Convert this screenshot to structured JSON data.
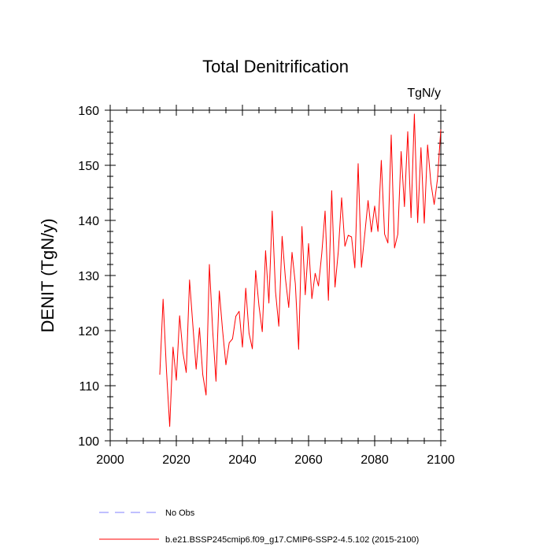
{
  "chart_data": {
    "type": "line",
    "title": "Total Denitrification",
    "units": "TgN/y",
    "xlabel": "",
    "ylabel": "DENIT  (TgN/y)",
    "xlim": [
      2000,
      2100
    ],
    "ylim": [
      100,
      160
    ],
    "x_ticks": [
      2000,
      2020,
      2040,
      2060,
      2080,
      2100
    ],
    "y_ticks": [
      100,
      110,
      120,
      130,
      140,
      150,
      160
    ],
    "series": [
      {
        "name": "b.e21.BSSP245cmip6.f09_g17.CMIP6-SSP2-4.5.102 (2015-2100)",
        "color": "#ff0000",
        "dash": "solid",
        "x": [
          2015,
          2016,
          2017,
          2018,
          2019,
          2020,
          2021,
          2022,
          2023,
          2024,
          2025,
          2026,
          2027,
          2028,
          2029,
          2030,
          2031,
          2032,
          2033,
          2034,
          2035,
          2036,
          2037,
          2038,
          2039,
          2040,
          2041,
          2042,
          2043,
          2044,
          2045,
          2046,
          2047,
          2048,
          2049,
          2050,
          2051,
          2052,
          2053,
          2054,
          2055,
          2056,
          2057,
          2058,
          2059,
          2060,
          2061,
          2062,
          2063,
          2064,
          2065,
          2066,
          2067,
          2068,
          2069,
          2070,
          2071,
          2072,
          2073,
          2074,
          2075,
          2076,
          2077,
          2078,
          2079,
          2080,
          2081,
          2082,
          2083,
          2084,
          2085,
          2086,
          2087,
          2088,
          2089,
          2090,
          2091,
          2092,
          2093,
          2094,
          2095,
          2096,
          2097,
          2098,
          2099,
          2100
        ],
        "values": [
          112,
          125.7,
          113,
          102.6,
          117,
          111,
          122.7,
          116,
          112.4,
          129.2,
          121,
          113,
          120.5,
          112,
          108.3,
          132,
          120,
          110.8,
          127.2,
          120,
          113.8,
          117.8,
          118.5,
          122.6,
          123.5,
          117,
          127.7,
          119.5,
          116.7,
          130.9,
          124.5,
          119.8,
          134.5,
          125,
          141.7,
          127.1,
          120.8,
          137.1,
          129.5,
          124.2,
          134.2,
          128.5,
          116.6,
          138.9,
          126.5,
          135.8,
          125.8,
          130.4,
          128.1,
          134,
          141.7,
          125.5,
          145.4,
          127.9,
          134.4,
          144.1,
          135.3,
          137.3,
          137,
          131.4,
          150.3,
          131.5,
          137.5,
          143.6,
          137.9,
          142.6,
          138,
          150.9,
          137.5,
          135.9,
          155.5,
          135,
          137.5,
          152.5,
          142.5,
          156.1,
          140.5,
          159.3,
          139.6,
          153.2,
          139.5,
          153.7,
          146.8,
          142.9,
          147.5,
          156.5
        ]
      }
    ],
    "legend": {
      "placement": "bottom",
      "entries": [
        {
          "label": "No Obs",
          "color": "#8080ff",
          "dash": "dashed"
        },
        {
          "label": "b.e21.BSSP245cmip6.f09_g17.CMIP6-SSP2-4.5.102 (2015-2100)",
          "color": "#ff0000",
          "dash": "solid"
        }
      ]
    }
  }
}
